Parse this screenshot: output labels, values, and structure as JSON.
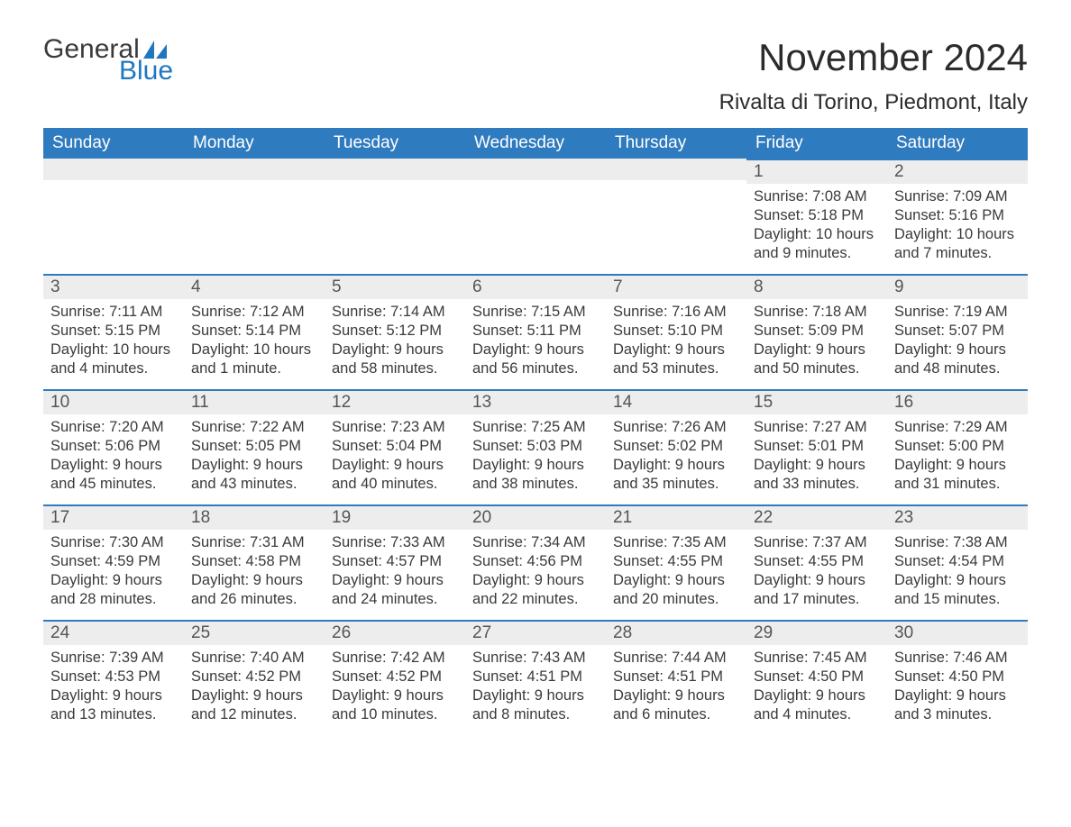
{
  "logo": {
    "word1": "General",
    "word2": "Blue",
    "word2_color": "#1f77c0",
    "sail_color": "#1f77c0"
  },
  "title": "November 2024",
  "subtitle": "Rivalta di Torino, Piedmont, Italy",
  "colors": {
    "header_bg": "#2f7bbf",
    "header_text": "#ffffff",
    "row_accent": "#2f7bbf",
    "daynum_bg": "#ededed",
    "daynum_text": "#555555",
    "body_text": "#3a3a3a",
    "page_bg": "#ffffff"
  },
  "weekday_headers": [
    "Sunday",
    "Monday",
    "Tuesday",
    "Wednesday",
    "Thursday",
    "Friday",
    "Saturday"
  ],
  "line_labels": {
    "sunrise": "Sunrise:",
    "sunset": "Sunset:",
    "daylight": "Daylight:"
  },
  "weeks": [
    [
      {
        "blank": true
      },
      {
        "blank": true
      },
      {
        "blank": true
      },
      {
        "blank": true
      },
      {
        "blank": true
      },
      {
        "day": 1,
        "sunrise": "7:08 AM",
        "sunset": "5:18 PM",
        "daylight": "10 hours and 9 minutes."
      },
      {
        "day": 2,
        "sunrise": "7:09 AM",
        "sunset": "5:16 PM",
        "daylight": "10 hours and 7 minutes."
      }
    ],
    [
      {
        "day": 3,
        "sunrise": "7:11 AM",
        "sunset": "5:15 PM",
        "daylight": "10 hours and 4 minutes."
      },
      {
        "day": 4,
        "sunrise": "7:12 AM",
        "sunset": "5:14 PM",
        "daylight": "10 hours and 1 minute."
      },
      {
        "day": 5,
        "sunrise": "7:14 AM",
        "sunset": "5:12 PM",
        "daylight": "9 hours and 58 minutes."
      },
      {
        "day": 6,
        "sunrise": "7:15 AM",
        "sunset": "5:11 PM",
        "daylight": "9 hours and 56 minutes."
      },
      {
        "day": 7,
        "sunrise": "7:16 AM",
        "sunset": "5:10 PM",
        "daylight": "9 hours and 53 minutes."
      },
      {
        "day": 8,
        "sunrise": "7:18 AM",
        "sunset": "5:09 PM",
        "daylight": "9 hours and 50 minutes."
      },
      {
        "day": 9,
        "sunrise": "7:19 AM",
        "sunset": "5:07 PM",
        "daylight": "9 hours and 48 minutes."
      }
    ],
    [
      {
        "day": 10,
        "sunrise": "7:20 AM",
        "sunset": "5:06 PM",
        "daylight": "9 hours and 45 minutes."
      },
      {
        "day": 11,
        "sunrise": "7:22 AM",
        "sunset": "5:05 PM",
        "daylight": "9 hours and 43 minutes."
      },
      {
        "day": 12,
        "sunrise": "7:23 AM",
        "sunset": "5:04 PM",
        "daylight": "9 hours and 40 minutes."
      },
      {
        "day": 13,
        "sunrise": "7:25 AM",
        "sunset": "5:03 PM",
        "daylight": "9 hours and 38 minutes."
      },
      {
        "day": 14,
        "sunrise": "7:26 AM",
        "sunset": "5:02 PM",
        "daylight": "9 hours and 35 minutes."
      },
      {
        "day": 15,
        "sunrise": "7:27 AM",
        "sunset": "5:01 PM",
        "daylight": "9 hours and 33 minutes."
      },
      {
        "day": 16,
        "sunrise": "7:29 AM",
        "sunset": "5:00 PM",
        "daylight": "9 hours and 31 minutes."
      }
    ],
    [
      {
        "day": 17,
        "sunrise": "7:30 AM",
        "sunset": "4:59 PM",
        "daylight": "9 hours and 28 minutes."
      },
      {
        "day": 18,
        "sunrise": "7:31 AM",
        "sunset": "4:58 PM",
        "daylight": "9 hours and 26 minutes."
      },
      {
        "day": 19,
        "sunrise": "7:33 AM",
        "sunset": "4:57 PM",
        "daylight": "9 hours and 24 minutes."
      },
      {
        "day": 20,
        "sunrise": "7:34 AM",
        "sunset": "4:56 PM",
        "daylight": "9 hours and 22 minutes."
      },
      {
        "day": 21,
        "sunrise": "7:35 AM",
        "sunset": "4:55 PM",
        "daylight": "9 hours and 20 minutes."
      },
      {
        "day": 22,
        "sunrise": "7:37 AM",
        "sunset": "4:55 PM",
        "daylight": "9 hours and 17 minutes."
      },
      {
        "day": 23,
        "sunrise": "7:38 AM",
        "sunset": "4:54 PM",
        "daylight": "9 hours and 15 minutes."
      }
    ],
    [
      {
        "day": 24,
        "sunrise": "7:39 AM",
        "sunset": "4:53 PM",
        "daylight": "9 hours and 13 minutes."
      },
      {
        "day": 25,
        "sunrise": "7:40 AM",
        "sunset": "4:52 PM",
        "daylight": "9 hours and 12 minutes."
      },
      {
        "day": 26,
        "sunrise": "7:42 AM",
        "sunset": "4:52 PM",
        "daylight": "9 hours and 10 minutes."
      },
      {
        "day": 27,
        "sunrise": "7:43 AM",
        "sunset": "4:51 PM",
        "daylight": "9 hours and 8 minutes."
      },
      {
        "day": 28,
        "sunrise": "7:44 AM",
        "sunset": "4:51 PM",
        "daylight": "9 hours and 6 minutes."
      },
      {
        "day": 29,
        "sunrise": "7:45 AM",
        "sunset": "4:50 PM",
        "daylight": "9 hours and 4 minutes."
      },
      {
        "day": 30,
        "sunrise": "7:46 AM",
        "sunset": "4:50 PM",
        "daylight": "9 hours and 3 minutes."
      }
    ]
  ]
}
